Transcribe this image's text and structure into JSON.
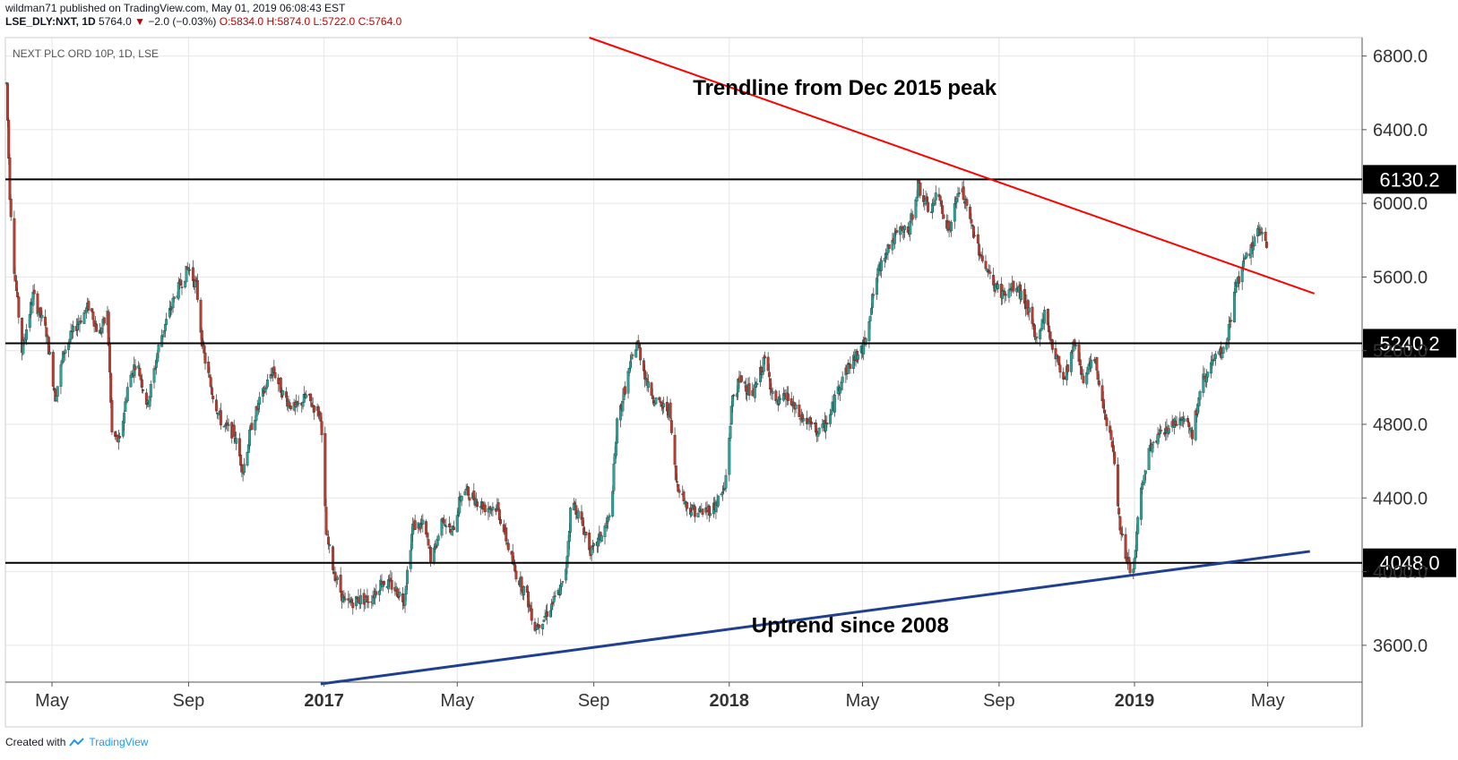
{
  "header": {
    "user": "wildman71",
    "published_text": "published on TradingView.com, May 01, 2019 06:08:43 EST",
    "symbol": "LSE_DLY:NXT, 1D",
    "last": "5764.0",
    "change": "−2.0 (−0.03%)",
    "open": "O:5834.0",
    "high": "H:5874.0",
    "low": "L:5722.0",
    "close": "C:5764.0"
  },
  "footer": {
    "created_with": "Created with",
    "brand": "TradingView"
  },
  "colors": {
    "up": "#26a69a",
    "down": "#c0392b",
    "trend_red": "#ff0000",
    "trend_blue": "#1f3f8f",
    "level": "#000000",
    "grid": "#e6e6e6"
  },
  "chart_data": {
    "type": "candlestick",
    "title": "NEXT PLC ORD 10P, 1D, LSE",
    "y_axis": {
      "min": 3400,
      "max": 6900,
      "ticks": [
        3600,
        4000,
        4400,
        4800,
        5200,
        5600,
        6000,
        6400,
        6800
      ],
      "tick_labels": [
        "3600.0",
        "4000.0",
        "4400.0",
        "4800.0",
        "5200.0",
        "5600.0",
        "6000.0",
        "6400.0",
        "6800.0"
      ]
    },
    "x_axis": {
      "range": [
        "2016-03-20",
        "2019-07-25"
      ],
      "ticks": [
        {
          "date": "2016-05-01",
          "label": "May",
          "bold": false
        },
        {
          "date": "2016-09-01",
          "label": "Sep",
          "bold": false
        },
        {
          "date": "2017-01-01",
          "label": "2017",
          "bold": true
        },
        {
          "date": "2017-05-01",
          "label": "May",
          "bold": false
        },
        {
          "date": "2017-09-01",
          "label": "Sep",
          "bold": false
        },
        {
          "date": "2018-01-01",
          "label": "2018",
          "bold": true
        },
        {
          "date": "2018-05-01",
          "label": "May",
          "bold": false
        },
        {
          "date": "2018-09-01",
          "label": "Sep",
          "bold": false
        },
        {
          "date": "2019-01-01",
          "label": "2019",
          "bold": true
        },
        {
          "date": "2019-05-01",
          "label": "May",
          "bold": false
        }
      ]
    },
    "price_path": [
      [
        "2016-03-21",
        6650
      ],
      [
        "2016-03-24",
        6050
      ],
      [
        "2016-03-28",
        5650
      ],
      [
        "2016-04-04",
        5200
      ],
      [
        "2016-04-14",
        5500
      ],
      [
        "2016-04-26",
        5300
      ],
      [
        "2016-05-04",
        4950
      ],
      [
        "2016-05-12",
        5200
      ],
      [
        "2016-05-24",
        5350
      ],
      [
        "2016-06-04",
        5450
      ],
      [
        "2016-06-12",
        5280
      ],
      [
        "2016-06-20",
        5400
      ],
      [
        "2016-06-24",
        4750
      ],
      [
        "2016-07-01",
        4700
      ],
      [
        "2016-07-08",
        5000
      ],
      [
        "2016-07-16",
        5150
      ],
      [
        "2016-07-26",
        4900
      ],
      [
        "2016-08-06",
        5250
      ],
      [
        "2016-08-20",
        5500
      ],
      [
        "2016-09-01",
        5650
      ],
      [
        "2016-09-08",
        5550
      ],
      [
        "2016-09-14",
        5200
      ],
      [
        "2016-09-22",
        4980
      ],
      [
        "2016-10-01",
        4800
      ],
      [
        "2016-10-12",
        4750
      ],
      [
        "2016-10-20",
        4550
      ],
      [
        "2016-10-28",
        4800
      ],
      [
        "2016-11-06",
        4950
      ],
      [
        "2016-11-16",
        5100
      ],
      [
        "2016-11-26",
        4950
      ],
      [
        "2016-12-06",
        4880
      ],
      [
        "2016-12-16",
        4950
      ],
      [
        "2016-12-29",
        4850
      ],
      [
        "2017-01-03",
        4200
      ],
      [
        "2017-01-10",
        4000
      ],
      [
        "2017-01-20",
        3820
      ],
      [
        "2017-02-01",
        3850
      ],
      [
        "2017-02-12",
        3850
      ],
      [
        "2017-02-22",
        3950
      ],
      [
        "2017-03-04",
        3920
      ],
      [
        "2017-03-14",
        3850
      ],
      [
        "2017-03-22",
        4250
      ],
      [
        "2017-04-01",
        4250
      ],
      [
        "2017-04-08",
        4050
      ],
      [
        "2017-04-18",
        4300
      ],
      [
        "2017-04-26",
        4200
      ],
      [
        "2017-05-06",
        4450
      ],
      [
        "2017-05-16",
        4400
      ],
      [
        "2017-05-26",
        4350
      ],
      [
        "2017-06-06",
        4350
      ],
      [
        "2017-06-14",
        4180
      ],
      [
        "2017-06-22",
        4000
      ],
      [
        "2017-07-02",
        3880
      ],
      [
        "2017-07-10",
        3700
      ],
      [
        "2017-07-18",
        3750
      ],
      [
        "2017-07-28",
        3850
      ],
      [
        "2017-08-06",
        3950
      ],
      [
        "2017-08-12",
        4400
      ],
      [
        "2017-08-22",
        4250
      ],
      [
        "2017-08-30",
        4100
      ],
      [
        "2017-09-08",
        4200
      ],
      [
        "2017-09-16",
        4300
      ],
      [
        "2017-09-22",
        4800
      ],
      [
        "2017-10-01",
        5050
      ],
      [
        "2017-10-10",
        5250
      ],
      [
        "2017-10-20",
        5000
      ],
      [
        "2017-10-30",
        4900
      ],
      [
        "2017-11-08",
        4880
      ],
      [
        "2017-11-14",
        4500
      ],
      [
        "2017-11-24",
        4350
      ],
      [
        "2017-12-06",
        4320
      ],
      [
        "2017-12-18",
        4350
      ],
      [
        "2017-12-28",
        4450
      ],
      [
        "2018-01-04",
        4950
      ],
      [
        "2018-01-12",
        5050
      ],
      [
        "2018-01-22",
        4950
      ],
      [
        "2018-02-02",
        5150
      ],
      [
        "2018-02-12",
        4900
      ],
      [
        "2018-02-22",
        4950
      ],
      [
        "2018-03-04",
        4850
      ],
      [
        "2018-03-14",
        4800
      ],
      [
        "2018-03-24",
        4750
      ],
      [
        "2018-04-02",
        4850
      ],
      [
        "2018-04-12",
        5050
      ],
      [
        "2018-04-22",
        5150
      ],
      [
        "2018-05-01",
        5200
      ],
      [
        "2018-05-06",
        5350
      ],
      [
        "2018-05-14",
        5600
      ],
      [
        "2018-05-22",
        5750
      ],
      [
        "2018-06-04",
        5850
      ],
      [
        "2018-06-12",
        5850
      ],
      [
        "2018-06-20",
        6100
      ],
      [
        "2018-06-30",
        5950
      ],
      [
        "2018-07-08",
        6050
      ],
      [
        "2018-07-18",
        5850
      ],
      [
        "2018-07-28",
        6100
      ],
      [
        "2018-08-06",
        5900
      ],
      [
        "2018-08-14",
        5750
      ],
      [
        "2018-08-20",
        5650
      ],
      [
        "2018-08-28",
        5550
      ],
      [
        "2018-09-06",
        5500
      ],
      [
        "2018-09-16",
        5550
      ],
      [
        "2018-09-26",
        5450
      ],
      [
        "2018-10-04",
        5250
      ],
      [
        "2018-10-12",
        5400
      ],
      [
        "2018-10-20",
        5200
      ],
      [
        "2018-10-30",
        5050
      ],
      [
        "2018-11-08",
        5250
      ],
      [
        "2018-11-16",
        5050
      ],
      [
        "2018-11-26",
        5150
      ],
      [
        "2018-12-04",
        4900
      ],
      [
        "2018-12-12",
        4700
      ],
      [
        "2018-12-18",
        4300
      ],
      [
        "2018-12-24",
        4050
      ],
      [
        "2018-12-31",
        4000
      ],
      [
        "2019-01-06",
        4400
      ],
      [
        "2019-01-14",
        4650
      ],
      [
        "2019-01-24",
        4750
      ],
      [
        "2019-02-04",
        4800
      ],
      [
        "2019-02-14",
        4850
      ],
      [
        "2019-02-22",
        4750
      ],
      [
        "2019-03-04",
        5050
      ],
      [
        "2019-03-14",
        5150
      ],
      [
        "2019-03-24",
        5200
      ],
      [
        "2019-04-02",
        5550
      ],
      [
        "2019-04-12",
        5700
      ],
      [
        "2019-04-22",
        5850
      ],
      [
        "2019-04-30",
        5764
      ]
    ],
    "horizontal_levels": [
      {
        "value": 6130.2,
        "label": "6130.2"
      },
      {
        "value": 5240.2,
        "label": "5240.2"
      },
      {
        "value": 4048.0,
        "label": "4048.0"
      }
    ],
    "trendlines": [
      {
        "name": "Trendline from Dec 2015 peak",
        "color": "#ff0000",
        "start": [
          "2017-08-28",
          6900
        ],
        "end": [
          "2019-06-12",
          5510
        ]
      },
      {
        "name": "Uptrend since 2008",
        "color": "#1f3f8f",
        "start": [
          "2016-12-29",
          3390
        ],
        "end": [
          "2019-06-08",
          4110
        ]
      }
    ],
    "annotations": [
      {
        "text": "Trendline from Dec 2015 peak",
        "at": [
          "2018-04-15",
          6590
        ]
      },
      {
        "text": "Uptrend since 2008",
        "at": [
          "2018-04-20",
          3670
        ]
      }
    ]
  }
}
